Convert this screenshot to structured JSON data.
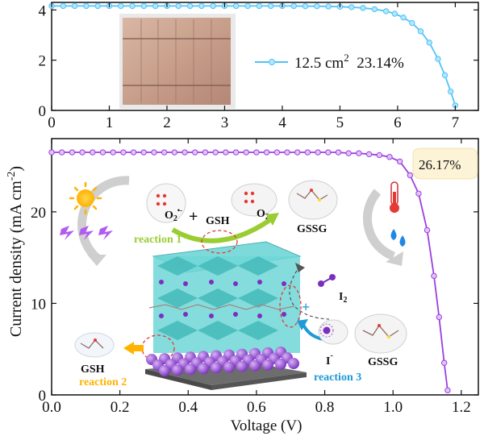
{
  "figure": {
    "ylabel_main": "Current density (mA cm",
    "ylabel_sup": "-2",
    "ylabel_tail": ")",
    "xlabel": "Voltage (V)"
  },
  "chart_data": [
    {
      "type": "line",
      "title": "",
      "xlabel": "",
      "ylabel": "",
      "xlim": [
        0,
        7.4
      ],
      "ylim": [
        0,
        4.3
      ],
      "xticks": [
        "0",
        "1",
        "2",
        "3",
        "4",
        "5",
        "6",
        "7"
      ],
      "yticks": [
        "0",
        "2",
        "4"
      ],
      "color": "#4fc3f7",
      "legend": {
        "text": "12.5 cm",
        "sup": "2",
        "tail": "  23.14%",
        "position": "right"
      },
      "x": [
        0,
        0.2,
        0.4,
        0.6,
        0.8,
        1.0,
        1.2,
        1.4,
        1.6,
        1.8,
        2.0,
        2.2,
        2.4,
        2.6,
        2.8,
        3.0,
        3.2,
        3.4,
        3.6,
        3.8,
        4.0,
        4.2,
        4.4,
        4.6,
        4.8,
        5.0,
        5.2,
        5.4,
        5.6,
        5.8,
        5.95,
        6.1,
        6.25,
        6.4,
        6.55,
        6.7,
        6.82,
        6.92,
        7.0
      ],
      "y": [
        4.16,
        4.16,
        4.16,
        4.16,
        4.16,
        4.16,
        4.16,
        4.16,
        4.16,
        4.16,
        4.16,
        4.16,
        4.16,
        4.16,
        4.16,
        4.16,
        4.16,
        4.16,
        4.16,
        4.16,
        4.16,
        4.16,
        4.15,
        4.15,
        4.14,
        4.13,
        4.11,
        4.08,
        4.03,
        3.95,
        3.85,
        3.7,
        3.48,
        3.15,
        2.7,
        2.05,
        1.4,
        0.75,
        0.2
      ]
    },
    {
      "type": "line",
      "title": "",
      "xlabel": "Voltage (V)",
      "ylabel": "Current density (mA cm-2)",
      "xlim": [
        0,
        1.25
      ],
      "ylim": [
        0,
        28
      ],
      "xticks": [
        "0.0",
        "0.2",
        "0.4",
        "0.6",
        "0.8",
        "1.0",
        "1.2"
      ],
      "yticks": [
        "0",
        "10",
        "20"
      ],
      "color": "#9c3fe0",
      "annotation": "26.17%",
      "x": [
        0,
        0.03,
        0.06,
        0.09,
        0.12,
        0.15,
        0.18,
        0.21,
        0.24,
        0.27,
        0.3,
        0.33,
        0.36,
        0.39,
        0.42,
        0.45,
        0.48,
        0.51,
        0.54,
        0.57,
        0.6,
        0.63,
        0.66,
        0.69,
        0.72,
        0.75,
        0.78,
        0.81,
        0.84,
        0.87,
        0.9,
        0.93,
        0.96,
        0.99,
        1.02,
        1.05,
        1.075,
        1.1,
        1.12,
        1.135,
        1.15,
        1.16
      ],
      "y": [
        26.5,
        26.5,
        26.5,
        26.5,
        26.5,
        26.5,
        26.5,
        26.5,
        26.5,
        26.5,
        26.5,
        26.5,
        26.5,
        26.5,
        26.5,
        26.5,
        26.5,
        26.5,
        26.5,
        26.5,
        26.5,
        26.5,
        26.5,
        26.5,
        26.5,
        26.5,
        26.5,
        26.5,
        26.5,
        26.4,
        26.4,
        26.3,
        26.2,
        26.0,
        25.5,
        24.0,
        22.0,
        18.0,
        13.0,
        8.5,
        3.5,
        0.5
      ]
    }
  ],
  "schematic": {
    "o2_label": "O",
    "o2_sub": "2",
    "o2_sup": "•-",
    "o2_right": "O",
    "o2_right_sub": "2",
    "gsh_top": "GSH",
    "gssg_top": "GSSG",
    "reaction1": "reaction 1",
    "plus": "+",
    "i2_label": "I",
    "i2_sub": "2",
    "iminus_label": "I",
    "iminus_sup": "-",
    "gssg_right": "GSSG",
    "reaction3": "reaction 3",
    "gsh_left": "GSH",
    "reaction2": "reaction 2",
    "reaction1_color": "#9acd32",
    "reaction2_color": "#ffb300",
    "reaction3_color": "#1e9ad6"
  }
}
